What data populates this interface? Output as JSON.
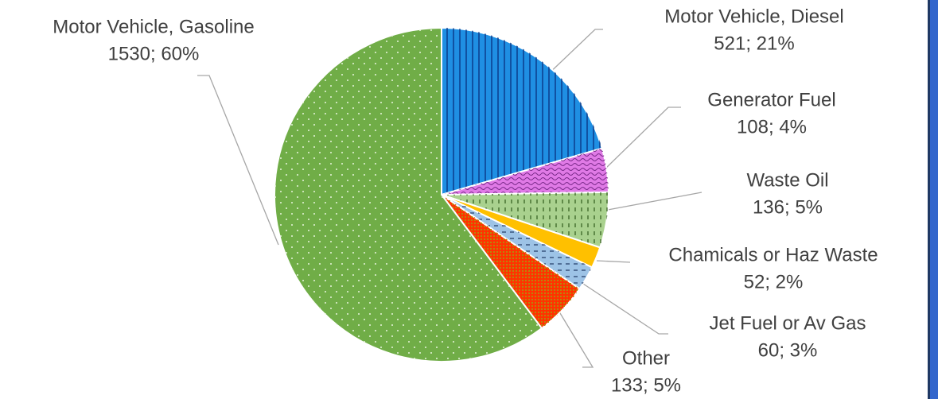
{
  "chart_data": {
    "type": "pie",
    "categories": [
      "Motor Vehicle, Diesel",
      "Generator Fuel",
      "Waste Oil",
      "Chamicals or Haz Waste",
      "Jet Fuel or Av Gas",
      "Other",
      "Motor Vehicle, Gasoline"
    ],
    "values": [
      521,
      108,
      136,
      52,
      60,
      133,
      1530
    ],
    "value_labels": [
      "521; 21%",
      "108; 4%",
      "136; 5%",
      "52; 2%",
      "60; 3%",
      "133; 5%",
      "1530; 60%"
    ],
    "colors": [
      "#1f8fe3",
      "#e07ae6",
      "#a9d18e",
      "#ffc000",
      "#9dc3e6",
      "#ff3300",
      "#70ad47"
    ]
  }
}
